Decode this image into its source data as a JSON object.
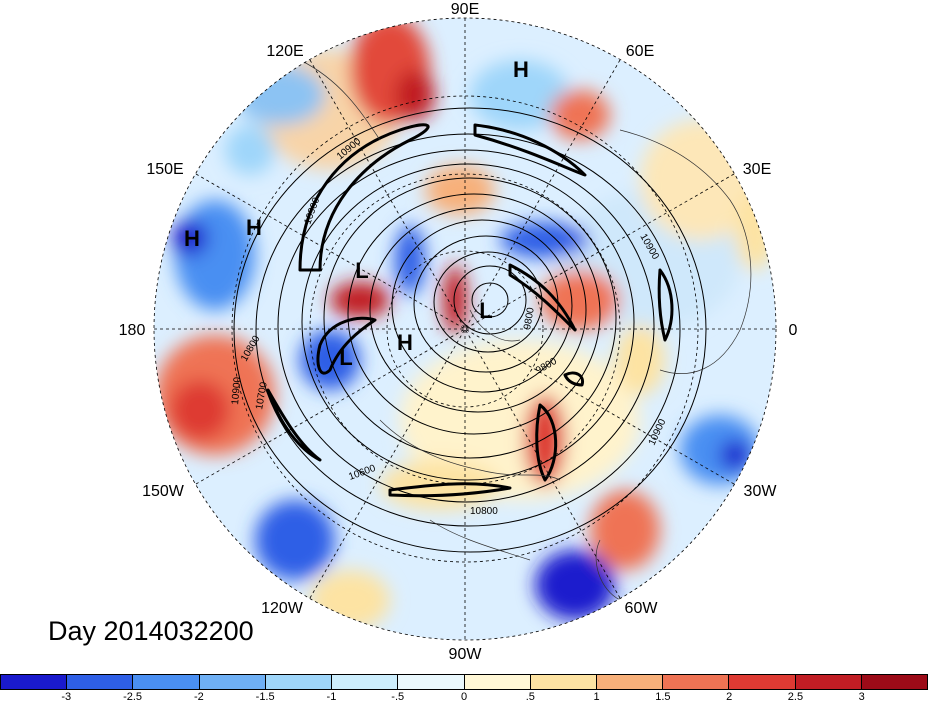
{
  "title": "Day 2014032200",
  "longitude_labels": {
    "top": "90E",
    "upper_left": "120E",
    "upper_right": "60E",
    "left_upper": "150E",
    "right_upper": "30E",
    "left": "180",
    "right": "0",
    "left_lower": "150W",
    "right_lower": "30W",
    "lower_left": "120W",
    "lower_right": "60W",
    "bottom": "90W"
  },
  "pressure_centers": [
    "H",
    "H",
    "H",
    "L",
    "L",
    "L",
    "H"
  ],
  "contour_labels": [
    "10900",
    "10800",
    "10900",
    "10700",
    "10600",
    "10800",
    "10900",
    "9800",
    "9800",
    "10900",
    "10900"
  ],
  "colorbar": {
    "ticks": [
      "-3",
      "-2.5",
      "-2",
      "-1.5",
      "-1",
      "-.5",
      "0",
      ".5",
      "1",
      "1.5",
      "2",
      "2.5",
      "3"
    ],
    "colors": [
      "#1a1acd",
      "#2e5fe6",
      "#4a8ff2",
      "#6fb0f5",
      "#9fd6fa",
      "#cdeefd",
      "#eaf8fd",
      "#fff7d6",
      "#fde3a3",
      "#f7b07a",
      "#ef7354",
      "#de3a33",
      "#c11d24",
      "#9c0b18"
    ]
  }
}
